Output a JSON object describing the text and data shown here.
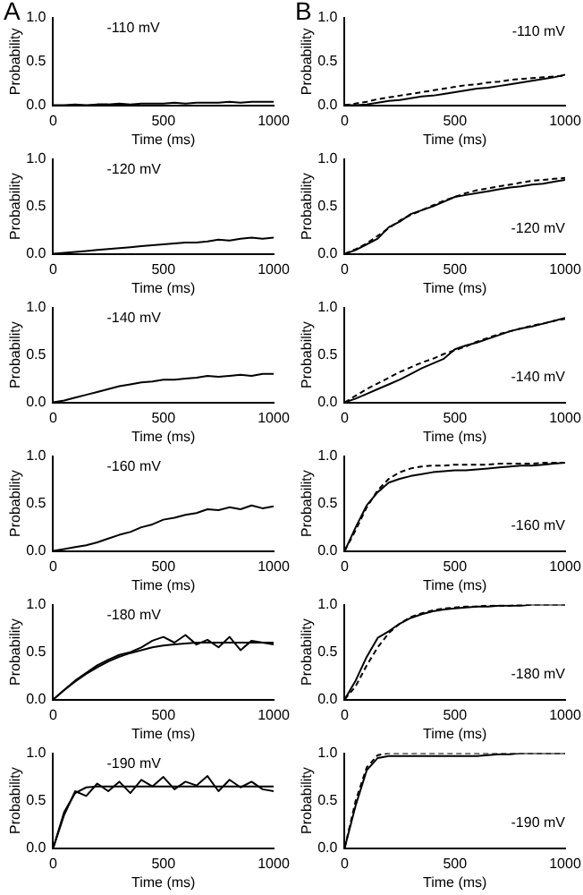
{
  "chart_data": [
    {
      "type": "line",
      "title": "A",
      "annotations": [
        "-110 mV"
      ],
      "xlabel": "Time (ms)",
      "ylabel": "Probability",
      "x": [
        0,
        50,
        100,
        150,
        200,
        250,
        300,
        350,
        400,
        450,
        500,
        550,
        600,
        650,
        700,
        750,
        800,
        850,
        900,
        950,
        1000
      ],
      "xlim": [
        0,
        1000
      ],
      "xticks": [
        0,
        500,
        1000
      ],
      "ylim": [
        0,
        1
      ],
      "yticks": [
        {
          "value": 0,
          "label": "0.0"
        },
        {
          "value": 0.5,
          "label": "0.5"
        },
        {
          "value": 1,
          "label": "1.0"
        }
      ],
      "series": [
        {
          "color": "#000000",
          "line_style": "solid",
          "values": [
            0,
            0,
            0.01,
            0,
            0.01,
            0.01,
            0.02,
            0.01,
            0.02,
            0.02,
            0.02,
            0.03,
            0.02,
            0.03,
            0.03,
            0.03,
            0.04,
            0.03,
            0.04,
            0.04,
            0.04
          ]
        }
      ]
    },
    {
      "type": "line",
      "title": "B",
      "annotations": [
        "-110 mV"
      ],
      "xlabel": "Time (ms)",
      "ylabel": "Probability",
      "x": [
        0,
        50,
        100,
        150,
        200,
        250,
        300,
        350,
        400,
        450,
        500,
        550,
        600,
        650,
        700,
        750,
        800,
        850,
        900,
        950,
        1000
      ],
      "xlim": [
        0,
        1000
      ],
      "xticks": [
        0,
        500,
        1000
      ],
      "ylim": [
        0,
        1
      ],
      "yticks": [
        {
          "value": 0,
          "label": "0.0"
        },
        {
          "value": 0.5,
          "label": "0.5"
        },
        {
          "value": 1,
          "label": "1.0"
        }
      ],
      "series": [
        {
          "color": "#000000",
          "line_style": "solid",
          "values": [
            0,
            0,
            0.01,
            0.03,
            0.05,
            0.06,
            0.08,
            0.1,
            0.11,
            0.13,
            0.15,
            0.17,
            0.19,
            0.2,
            0.22,
            0.24,
            0.26,
            0.28,
            0.3,
            0.32,
            0.35
          ]
        },
        {
          "color": "#000000",
          "line_style": "dashed",
          "values": [
            0,
            0.02,
            0.04,
            0.07,
            0.09,
            0.11,
            0.13,
            0.15,
            0.17,
            0.19,
            0.21,
            0.23,
            0.24,
            0.26,
            0.27,
            0.29,
            0.3,
            0.31,
            0.32,
            0.33,
            0.34
          ]
        }
      ]
    },
    {
      "type": "line",
      "annotations": [
        "-120 mV"
      ],
      "xlabel": "Time (ms)",
      "ylabel": "Probability",
      "x": [
        0,
        50,
        100,
        150,
        200,
        250,
        300,
        350,
        400,
        450,
        500,
        550,
        600,
        650,
        700,
        750,
        800,
        850,
        900,
        950,
        1000
      ],
      "xlim": [
        0,
        1000
      ],
      "xticks": [
        0,
        500,
        1000
      ],
      "ylim": [
        0,
        1
      ],
      "yticks": [
        {
          "value": 0,
          "label": "0.0"
        },
        {
          "value": 0.5,
          "label": "0.5"
        },
        {
          "value": 1,
          "label": "1.0"
        }
      ],
      "series": [
        {
          "color": "#000000",
          "line_style": "solid",
          "values": [
            0,
            0.01,
            0.02,
            0.03,
            0.04,
            0.05,
            0.06,
            0.07,
            0.08,
            0.09,
            0.1,
            0.11,
            0.12,
            0.12,
            0.13,
            0.15,
            0.14,
            0.16,
            0.17,
            0.16,
            0.17
          ]
        }
      ]
    },
    {
      "type": "line",
      "annotations": [
        "-120 mV"
      ],
      "xlabel": "Time (ms)",
      "ylabel": "Probability",
      "x": [
        0,
        50,
        100,
        150,
        200,
        250,
        300,
        350,
        400,
        450,
        500,
        550,
        600,
        650,
        700,
        750,
        800,
        850,
        900,
        950,
        1000
      ],
      "xlim": [
        0,
        1000
      ],
      "xticks": [
        0,
        500,
        1000
      ],
      "ylim": [
        0,
        1
      ],
      "yticks": [
        {
          "value": 0,
          "label": "0.0"
        },
        {
          "value": 0.5,
          "label": "0.5"
        },
        {
          "value": 1,
          "label": "1.0"
        }
      ],
      "series": [
        {
          "color": "#000000",
          "line_style": "solid",
          "values": [
            0,
            0.04,
            0.1,
            0.16,
            0.28,
            0.34,
            0.42,
            0.46,
            0.5,
            0.55,
            0.6,
            0.62,
            0.64,
            0.66,
            0.68,
            0.7,
            0.71,
            0.73,
            0.74,
            0.76,
            0.78
          ]
        },
        {
          "color": "#000000",
          "line_style": "dashed",
          "values": [
            0,
            0.05,
            0.11,
            0.19,
            0.27,
            0.35,
            0.41,
            0.46,
            0.51,
            0.56,
            0.6,
            0.64,
            0.67,
            0.69,
            0.71,
            0.73,
            0.75,
            0.77,
            0.78,
            0.79,
            0.8
          ]
        }
      ]
    },
    {
      "type": "line",
      "annotations": [
        "-140 mV"
      ],
      "xlabel": "Time (ms)",
      "ylabel": "Probability",
      "x": [
        0,
        50,
        100,
        150,
        200,
        250,
        300,
        350,
        400,
        450,
        500,
        550,
        600,
        650,
        700,
        750,
        800,
        850,
        900,
        950,
        1000
      ],
      "xlim": [
        0,
        1000
      ],
      "xticks": [
        0,
        500,
        1000
      ],
      "ylim": [
        0,
        1
      ],
      "yticks": [
        {
          "value": 0,
          "label": "0.0"
        },
        {
          "value": 0.5,
          "label": "0.5"
        },
        {
          "value": 1,
          "label": "1.0"
        }
      ],
      "series": [
        {
          "color": "#000000",
          "line_style": "solid",
          "values": [
            0,
            0.02,
            0.05,
            0.08,
            0.11,
            0.14,
            0.17,
            0.19,
            0.21,
            0.22,
            0.24,
            0.24,
            0.25,
            0.26,
            0.28,
            0.27,
            0.28,
            0.29,
            0.28,
            0.3,
            0.3
          ]
        }
      ]
    },
    {
      "type": "line",
      "annotations": [
        "-140 mV"
      ],
      "xlabel": "Time (ms)",
      "ylabel": "Probability",
      "x": [
        0,
        50,
        100,
        150,
        200,
        250,
        300,
        350,
        400,
        450,
        500,
        550,
        600,
        650,
        700,
        750,
        800,
        850,
        900,
        950,
        1000
      ],
      "xlim": [
        0,
        1000
      ],
      "xticks": [
        0,
        500,
        1000
      ],
      "ylim": [
        0,
        1
      ],
      "yticks": [
        {
          "value": 0,
          "label": "0.0"
        },
        {
          "value": 0.5,
          "label": "0.5"
        },
        {
          "value": 1,
          "label": "1.0"
        }
      ],
      "series": [
        {
          "color": "#000000",
          "line_style": "solid",
          "values": [
            0,
            0.04,
            0.09,
            0.14,
            0.19,
            0.24,
            0.3,
            0.36,
            0.41,
            0.46,
            0.56,
            0.6,
            0.63,
            0.67,
            0.71,
            0.75,
            0.78,
            0.8,
            0.83,
            0.86,
            0.89
          ]
        },
        {
          "color": "#000000",
          "line_style": "dashed",
          "values": [
            0,
            0.07,
            0.14,
            0.2,
            0.26,
            0.32,
            0.37,
            0.42,
            0.46,
            0.51,
            0.55,
            0.59,
            0.64,
            0.68,
            0.72,
            0.75,
            0.78,
            0.81,
            0.83,
            0.86,
            0.88
          ]
        }
      ]
    },
    {
      "type": "line",
      "annotations": [
        "-160 mV"
      ],
      "xlabel": "Time (ms)",
      "ylabel": "Probability",
      "x": [
        0,
        50,
        100,
        150,
        200,
        250,
        300,
        350,
        400,
        450,
        500,
        550,
        600,
        650,
        700,
        750,
        800,
        850,
        900,
        950,
        1000
      ],
      "xlim": [
        0,
        1000
      ],
      "xticks": [
        0,
        500,
        1000
      ],
      "ylim": [
        0,
        1
      ],
      "yticks": [
        {
          "value": 0,
          "label": "0.0"
        },
        {
          "value": 0.5,
          "label": "0.5"
        },
        {
          "value": 1,
          "label": "1.0"
        }
      ],
      "series": [
        {
          "color": "#000000",
          "line_style": "solid",
          "values": [
            0,
            0.02,
            0.04,
            0.06,
            0.09,
            0.13,
            0.17,
            0.2,
            0.25,
            0.28,
            0.33,
            0.35,
            0.38,
            0.4,
            0.44,
            0.43,
            0.46,
            0.44,
            0.48,
            0.45,
            0.47
          ]
        }
      ]
    },
    {
      "type": "line",
      "annotations": [
        "-160 mV"
      ],
      "xlabel": "Time (ms)",
      "ylabel": "Probability",
      "x": [
        0,
        50,
        100,
        150,
        200,
        250,
        300,
        350,
        400,
        450,
        500,
        550,
        600,
        650,
        700,
        750,
        800,
        850,
        900,
        950,
        1000
      ],
      "xlim": [
        0,
        1000
      ],
      "xticks": [
        0,
        500,
        1000
      ],
      "ylim": [
        0,
        1
      ],
      "yticks": [
        {
          "value": 0,
          "label": "0.0"
        },
        {
          "value": 0.5,
          "label": "0.5"
        },
        {
          "value": 1,
          "label": "1.0"
        }
      ],
      "series": [
        {
          "color": "#000000",
          "line_style": "solid",
          "values": [
            0,
            0.25,
            0.48,
            0.62,
            0.72,
            0.76,
            0.79,
            0.81,
            0.83,
            0.84,
            0.85,
            0.85,
            0.86,
            0.87,
            0.88,
            0.89,
            0.9,
            0.9,
            0.91,
            0.92,
            0.93
          ]
        },
        {
          "color": "#000000",
          "line_style": "dashed",
          "values": [
            0,
            0.22,
            0.46,
            0.64,
            0.76,
            0.83,
            0.87,
            0.89,
            0.9,
            0.9,
            0.91,
            0.91,
            0.91,
            0.91,
            0.92,
            0.92,
            0.92,
            0.92,
            0.93,
            0.93,
            0.93
          ]
        }
      ]
    },
    {
      "type": "line",
      "annotations": [
        "-180 mV"
      ],
      "xlabel": "Time (ms)",
      "ylabel": "Probability",
      "x": [
        0,
        50,
        100,
        150,
        200,
        250,
        300,
        350,
        400,
        450,
        500,
        550,
        600,
        650,
        700,
        750,
        800,
        850,
        900,
        950,
        1000
      ],
      "xlim": [
        0,
        1000
      ],
      "xticks": [
        0,
        500,
        1000
      ],
      "ylim": [
        0,
        1
      ],
      "yticks": [
        {
          "value": 0,
          "label": "0.0"
        },
        {
          "value": 0.5,
          "label": "0.5"
        },
        {
          "value": 1,
          "label": "1.0"
        }
      ],
      "series": [
        {
          "color": "#000000",
          "line_style": "solid",
          "values": [
            0,
            0.1,
            0.2,
            0.28,
            0.36,
            0.42,
            0.47,
            0.5,
            0.55,
            0.62,
            0.66,
            0.6,
            0.68,
            0.58,
            0.63,
            0.55,
            0.66,
            0.52,
            0.62,
            0.6,
            0.58
          ]
        },
        {
          "color": "#000000",
          "line_style": "solid",
          "values": [
            0,
            0.1,
            0.19,
            0.27,
            0.34,
            0.4,
            0.45,
            0.49,
            0.52,
            0.55,
            0.57,
            0.58,
            0.59,
            0.6,
            0.6,
            0.6,
            0.6,
            0.6,
            0.6,
            0.6,
            0.6
          ]
        }
      ]
    },
    {
      "type": "line",
      "annotations": [
        "-180 mV"
      ],
      "xlabel": "Time (ms)",
      "ylabel": "Probability",
      "x": [
        0,
        50,
        100,
        150,
        200,
        250,
        300,
        350,
        400,
        450,
        500,
        550,
        600,
        650,
        700,
        750,
        800,
        850,
        900,
        950,
        1000
      ],
      "xlim": [
        0,
        1000
      ],
      "xticks": [
        0,
        500,
        1000
      ],
      "ylim": [
        0,
        1
      ],
      "yticks": [
        {
          "value": 0,
          "label": "0.0"
        },
        {
          "value": 0.5,
          "label": "0.5"
        },
        {
          "value": 1,
          "label": "1.0"
        }
      ],
      "series": [
        {
          "color": "#000000",
          "line_style": "solid",
          "values": [
            0,
            0.2,
            0.45,
            0.65,
            0.72,
            0.8,
            0.86,
            0.9,
            0.93,
            0.95,
            0.96,
            0.97,
            0.98,
            0.98,
            0.99,
            0.99,
            0.99,
            1,
            1,
            1,
            1
          ]
        },
        {
          "color": "#000000",
          "line_style": "dashed",
          "values": [
            0,
            0.14,
            0.36,
            0.55,
            0.7,
            0.8,
            0.87,
            0.91,
            0.94,
            0.96,
            0.97,
            0.98,
            0.98,
            0.99,
            0.99,
            0.99,
            1,
            1,
            1,
            1,
            1
          ]
        }
      ]
    },
    {
      "type": "line",
      "annotations": [
        "-190 mV"
      ],
      "xlabel": "Time (ms)",
      "ylabel": "Probability",
      "x": [
        0,
        50,
        100,
        150,
        200,
        250,
        300,
        350,
        400,
        450,
        500,
        550,
        600,
        650,
        700,
        750,
        800,
        850,
        900,
        950,
        1000
      ],
      "xlim": [
        0,
        1000
      ],
      "xticks": [
        0,
        500,
        1000
      ],
      "ylim": [
        0,
        1
      ],
      "yticks": [
        {
          "value": 0,
          "label": "0.0"
        },
        {
          "value": 0.5,
          "label": "0.5"
        },
        {
          "value": 1,
          "label": "1.0"
        }
      ],
      "series": [
        {
          "color": "#000000",
          "line_style": "solid",
          "values": [
            0,
            0.35,
            0.6,
            0.55,
            0.68,
            0.6,
            0.7,
            0.58,
            0.72,
            0.65,
            0.75,
            0.62,
            0.7,
            0.66,
            0.76,
            0.6,
            0.72,
            0.64,
            0.7,
            0.62,
            0.6
          ]
        },
        {
          "color": "#000000",
          "line_style": "solid",
          "values": [
            0,
            0.38,
            0.58,
            0.64,
            0.65,
            0.65,
            0.65,
            0.65,
            0.65,
            0.65,
            0.65,
            0.65,
            0.65,
            0.65,
            0.65,
            0.65,
            0.65,
            0.65,
            0.65,
            0.65,
            0.65
          ]
        }
      ]
    },
    {
      "type": "line",
      "annotations": [
        "-190 mV"
      ],
      "xlabel": "Time (ms)",
      "ylabel": "Probability",
      "x": [
        0,
        50,
        100,
        150,
        200,
        250,
        300,
        350,
        400,
        450,
        500,
        550,
        600,
        650,
        700,
        750,
        800,
        850,
        900,
        950,
        1000
      ],
      "xlim": [
        0,
        1000
      ],
      "xticks": [
        0,
        500,
        1000
      ],
      "ylim": [
        0,
        1
      ],
      "yticks": [
        {
          "value": 0,
          "label": "0.0"
        },
        {
          "value": 0.5,
          "label": "0.5"
        },
        {
          "value": 1,
          "label": "1.0"
        }
      ],
      "series": [
        {
          "color": "#000000",
          "line_style": "solid",
          "values": [
            0,
            0.45,
            0.82,
            0.95,
            0.97,
            0.97,
            0.97,
            0.97,
            0.97,
            0.97,
            0.97,
            0.97,
            0.97,
            0.98,
            0.99,
            0.99,
            1,
            1,
            1,
            1,
            1
          ]
        },
        {
          "color": "#000000",
          "line_style": "dashed",
          "values": [
            0,
            0.5,
            0.85,
            0.98,
            1,
            1,
            1,
            1,
            1,
            1,
            1,
            1,
            1,
            1,
            1,
            1,
            1,
            1,
            1,
            1,
            1
          ]
        }
      ]
    }
  ]
}
